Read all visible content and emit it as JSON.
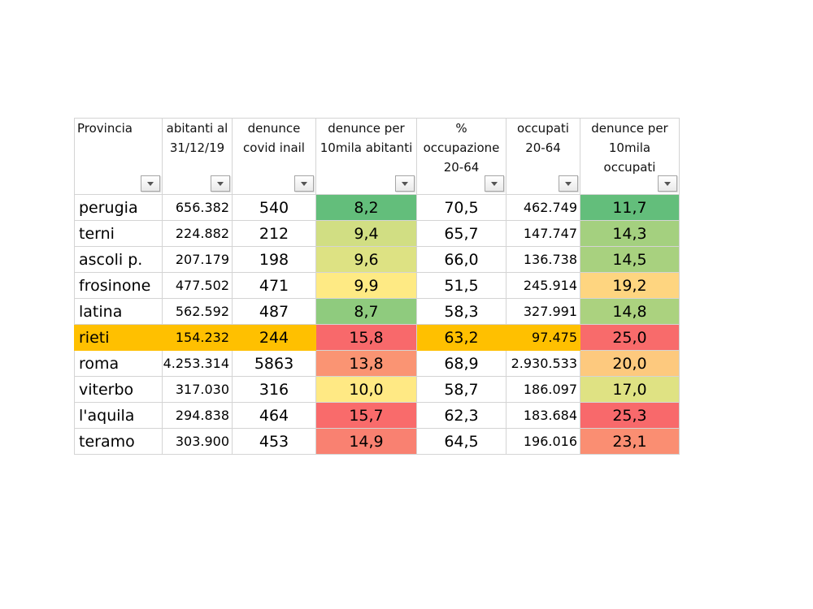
{
  "table": {
    "headers": [
      "Provincia",
      "abitanti al 31/12/19",
      "denunce covid inail",
      "denunce per 10mila abitanti",
      "% occupazione 20-64",
      "occupati 20-64",
      "denunce per 10mila occupati"
    ],
    "rows": [
      [
        "perugia",
        "656.382",
        "540",
        "8,2",
        "70,5",
        "462.749",
        "11,7"
      ],
      [
        "terni",
        "224.882",
        "212",
        "9,4",
        "65,7",
        "147.747",
        "14,3"
      ],
      [
        "ascoli p.",
        "207.179",
        "198",
        "9,6",
        "66,0",
        "136.738",
        "14,5"
      ],
      [
        "frosinone",
        "477.502",
        "471",
        "9,9",
        "51,5",
        "245.914",
        "19,2"
      ],
      [
        "latina",
        "562.592",
        "487",
        "8,7",
        "58,3",
        "327.991",
        "14,8"
      ],
      [
        "rieti",
        "154.232",
        "244",
        "15,8",
        "63,2",
        "97.475",
        "25,0"
      ],
      [
        "roma",
        "4.253.314",
        "5863",
        "13,8",
        "68,9",
        "2.930.533",
        "20,0"
      ],
      [
        "viterbo",
        "317.030",
        "316",
        "10,0",
        "58,7",
        "186.097",
        "17,0"
      ],
      [
        "l'aquila",
        "294.838",
        "464",
        "15,7",
        "62,3",
        "183.684",
        "25,3"
      ],
      [
        "teramo",
        "303.900",
        "453",
        "14,9",
        "64,5",
        "196.016",
        "23,1"
      ]
    ],
    "highlighted_row": "rieti",
    "highlight_color": "#ffc000",
    "cell_colors": {
      "denunce per 10mila abitanti": [
        "#63be7b",
        "#d1de83",
        "#dde283",
        "#feea84",
        "#8fcb7e",
        "#f8696b",
        "#fa9473",
        "#ffe984",
        "#f96b6b",
        "#f98171"
      ],
      "denunce per 10mila occupati": [
        "#63be7b",
        "#a4d07f",
        "#a8d17f",
        "#fed580",
        "#abd27f",
        "#f86b6b",
        "#fdc97e",
        "#dfe283",
        "#f8696b",
        "#fa8e72"
      ]
    },
    "filter_icon": "dropdown-arrow-icon"
  }
}
